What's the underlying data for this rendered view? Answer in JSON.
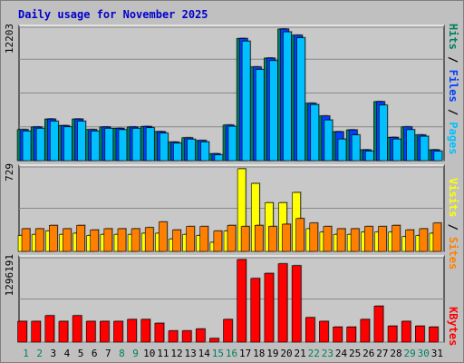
{
  "title": "Daily usage for November 2025",
  "colors": {
    "hits": "#00805c",
    "files": "#0040ff",
    "pages": "#00c0ff",
    "visits": "#ffff00",
    "sites": "#ff8000",
    "kbytes": "#ff0000",
    "weekend": "#00805c",
    "weekday": "#000000",
    "panel": "#c0c0c0",
    "plot": "#c8c8c8"
  },
  "chart_data": [
    {
      "type": "bar",
      "name": "top-panel",
      "categories": [
        "1",
        "2",
        "3",
        "4",
        "5",
        "6",
        "7",
        "8",
        "9",
        "10",
        "11",
        "12",
        "13",
        "14",
        "15",
        "16",
        "17",
        "18",
        "19",
        "20",
        "21",
        "22",
        "23",
        "24",
        "25",
        "26",
        "27",
        "28",
        "29",
        "30",
        "31"
      ],
      "weekend_days": [
        "1",
        "2",
        "8",
        "9",
        "15",
        "16",
        "22",
        "23",
        "29",
        "30"
      ],
      "ymax_label": "12203",
      "ylim": [
        0,
        12203
      ],
      "legend": [
        "Pages",
        "Files",
        "Hits"
      ],
      "series": [
        {
          "name": "Hits",
          "values": [
            2880,
            3120,
            3860,
            3250,
            3860,
            2880,
            3120,
            3000,
            3120,
            3170,
            2690,
            1720,
            2120,
            1870,
            640,
            3300,
            11330,
            8690,
            9510,
            12203,
            11630,
            5320,
            4140,
            2680,
            2850,
            1000,
            5470,
            2160,
            3130,
            2380,
            1000
          ]
        },
        {
          "name": "Files",
          "values": [
            2880,
            3120,
            3860,
            3250,
            3860,
            2880,
            3120,
            3000,
            3120,
            3170,
            2690,
            1720,
            2120,
            1870,
            640,
            3300,
            11330,
            8690,
            9510,
            12203,
            11630,
            5320,
            4140,
            2680,
            2850,
            1000,
            5470,
            2160,
            3130,
            2380,
            1000
          ]
        },
        {
          "name": "Pages",
          "values": [
            2740,
            2990,
            3660,
            3130,
            3660,
            2740,
            2990,
            2870,
            2990,
            3050,
            2550,
            1620,
            1990,
            1740,
            540,
            3180,
            11080,
            8450,
            9270,
            11940,
            11390,
            5200,
            3770,
            2000,
            2380,
            880,
            5150,
            2000,
            2870,
            2260,
            880
          ]
        }
      ]
    },
    {
      "type": "bar",
      "name": "middle-panel",
      "categories": [
        "1",
        "2",
        "3",
        "4",
        "5",
        "6",
        "7",
        "8",
        "9",
        "10",
        "11",
        "12",
        "13",
        "14",
        "15",
        "16",
        "17",
        "18",
        "19",
        "20",
        "21",
        "22",
        "23",
        "24",
        "25",
        "26",
        "27",
        "28",
        "29",
        "30",
        "31"
      ],
      "ymax_label": "729",
      "ylim": [
        0,
        729
      ],
      "legend": [
        "Sites",
        "Visits"
      ],
      "series": [
        {
          "name": "Sites",
          "values": [
            200,
            200,
            230,
            200,
            230,
            190,
            200,
            200,
            200,
            210,
            260,
            190,
            220,
            220,
            180,
            230,
            220,
            230,
            220,
            240,
            290,
            250,
            220,
            200,
            200,
            220,
            220,
            230,
            190,
            200,
            250
          ]
        },
        {
          "name": "Visits",
          "values": [
            140,
            150,
            180,
            150,
            160,
            140,
            150,
            150,
            150,
            160,
            160,
            110,
            150,
            140,
            80,
            180,
            729,
            600,
            430,
            430,
            520,
            200,
            170,
            150,
            150,
            170,
            170,
            170,
            130,
            140,
            160
          ]
        }
      ]
    },
    {
      "type": "bar",
      "name": "bottom-panel",
      "categories": [
        "1",
        "2",
        "3",
        "4",
        "5",
        "6",
        "7",
        "8",
        "9",
        "10",
        "11",
        "12",
        "13",
        "14",
        "15",
        "16",
        "17",
        "18",
        "19",
        "20",
        "21",
        "22",
        "23",
        "24",
        "25",
        "26",
        "27",
        "28",
        "29",
        "30",
        "31"
      ],
      "ymax_label": "1296191",
      "ylim": [
        0,
        1296191
      ],
      "legend": [
        "KBytes"
      ],
      "series": [
        {
          "name": "KBytes",
          "values": [
            327000,
            327000,
            416000,
            327000,
            416000,
            327000,
            327000,
            327000,
            357000,
            357000,
            297000,
            178000,
            178000,
            208000,
            59000,
            357000,
            1296191,
            1000000,
            1080000,
            1230000,
            1200000,
            386000,
            327000,
            238000,
            238000,
            357000,
            566000,
            253000,
            327000,
            253000,
            238000
          ]
        }
      ]
    }
  ]
}
